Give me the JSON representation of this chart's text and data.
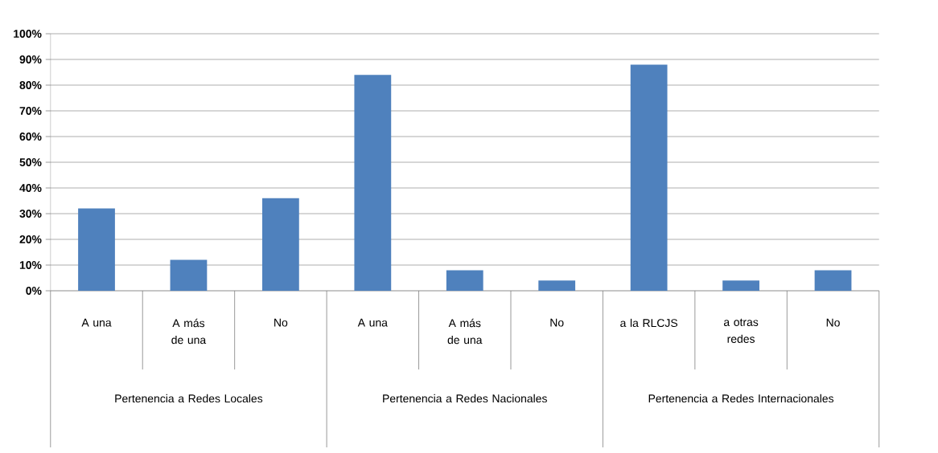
{
  "chart_data": {
    "type": "bar",
    "categories": [
      "A una",
      "A más de una",
      "No",
      "A una",
      "A más de una",
      "No",
      "a la RLCJS",
      "a otras redes",
      "No"
    ],
    "values": [
      32,
      12,
      36,
      84,
      8,
      4,
      88,
      4,
      8
    ],
    "color": "#4f81bd",
    "ylim": [
      0,
      100
    ],
    "yticks": [
      {
        "value": 0,
        "label": "0%"
      },
      {
        "value": 10,
        "label": "10%"
      },
      {
        "value": 20,
        "label": "20%"
      },
      {
        "value": 30,
        "label": "30%"
      },
      {
        "value": 40,
        "label": "40%"
      },
      {
        "value": 50,
        "label": "50%"
      },
      {
        "value": 60,
        "label": "60%"
      },
      {
        "value": 70,
        "label": "70%"
      },
      {
        "value": 80,
        "label": "80%"
      },
      {
        "value": 90,
        "label": "90%"
      },
      {
        "value": 100,
        "label": "100%"
      }
    ],
    "grid": "y",
    "annotations": [
      "Pertenencia a Redes Locales",
      "Pertenencia a Redes Nacionales",
      "Pertenencia a Redes Internacionales"
    ]
  }
}
